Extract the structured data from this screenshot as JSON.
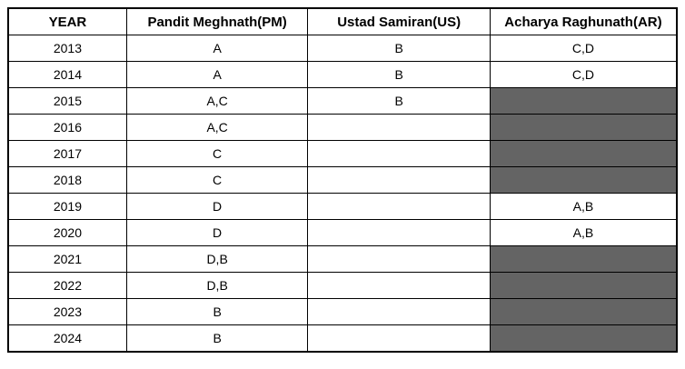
{
  "chart_data": {
    "type": "table",
    "title": "",
    "columns": [
      "YEAR",
      "Pandit Meghnath(PM)",
      "Ustad Samiran(US)",
      "Acharya Raghunath(AR)"
    ],
    "rows": [
      {
        "cells": [
          "2013",
          "A",
          "B",
          "C,D"
        ],
        "shaded": [
          false,
          false,
          false,
          false
        ]
      },
      {
        "cells": [
          "2014",
          "A",
          "B",
          "C,D"
        ],
        "shaded": [
          false,
          false,
          false,
          false
        ]
      },
      {
        "cells": [
          "2015",
          "A,C",
          "B",
          ""
        ],
        "shaded": [
          false,
          false,
          false,
          true
        ]
      },
      {
        "cells": [
          "2016",
          "A,C",
          "",
          ""
        ],
        "shaded": [
          false,
          false,
          false,
          true
        ]
      },
      {
        "cells": [
          "2017",
          "C",
          "",
          ""
        ],
        "shaded": [
          false,
          false,
          false,
          true
        ]
      },
      {
        "cells": [
          "2018",
          "C",
          "",
          ""
        ],
        "shaded": [
          false,
          false,
          false,
          true
        ]
      },
      {
        "cells": [
          "2019",
          "D",
          "",
          "A,B"
        ],
        "shaded": [
          false,
          false,
          false,
          false
        ]
      },
      {
        "cells": [
          "2020",
          "D",
          "",
          "A,B"
        ],
        "shaded": [
          false,
          false,
          false,
          false
        ]
      },
      {
        "cells": [
          "2021",
          "D,B",
          "",
          ""
        ],
        "shaded": [
          false,
          false,
          false,
          true
        ]
      },
      {
        "cells": [
          "2022",
          "D,B",
          "",
          ""
        ],
        "shaded": [
          false,
          false,
          false,
          true
        ]
      },
      {
        "cells": [
          "2023",
          "B",
          "",
          ""
        ],
        "shaded": [
          false,
          false,
          false,
          true
        ]
      },
      {
        "cells": [
          "2024",
          "B",
          "",
          ""
        ],
        "shaded": [
          false,
          false,
          false,
          true
        ]
      }
    ],
    "layout": {
      "grid": "all-borders",
      "outer_border": "thick-black",
      "shaded_color": "#646464",
      "header_bold": true,
      "text_align": "center"
    }
  }
}
